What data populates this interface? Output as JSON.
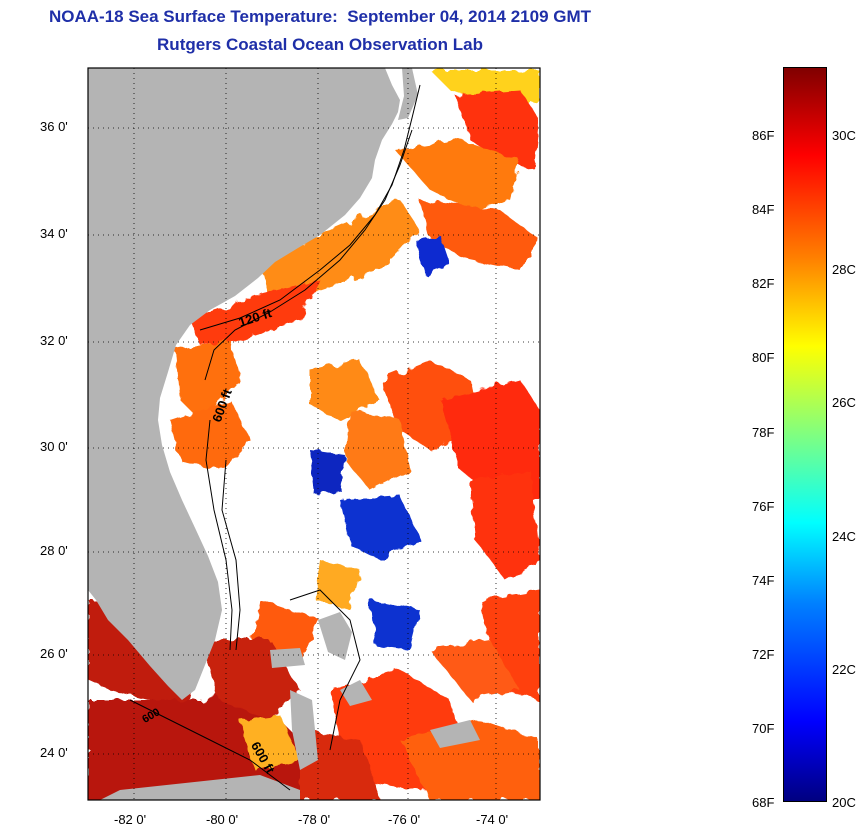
{
  "header": {
    "title": "NOAA-18 Sea Surface Temperature:  September 04, 2014 2109 GMT",
    "subtitle": "Rutgers Coastal Ocean Observation Lab"
  },
  "map": {
    "lat_labels": [
      "36 0'",
      "34 0'",
      "32 0'",
      "30 0'",
      "28 0'",
      "26 0'",
      "24 0'"
    ],
    "lon_labels": [
      "-82 0'",
      "-80 0'",
      "-78 0'",
      "-76 0'",
      "-74 0'"
    ],
    "contour_labels": [
      "120 ft",
      "600 ft",
      "600 ft",
      "600"
    ],
    "colors": {
      "land": "#b4b4b4",
      "cloud": "#ffffff"
    }
  },
  "colorbar": {
    "fahrenheit_labels": [
      "86F",
      "84F",
      "82F",
      "80F",
      "78F",
      "76F",
      "74F",
      "72F",
      "70F",
      "68F"
    ],
    "celsius_labels": [
      "30C",
      "28C",
      "26C",
      "24C",
      "22C",
      "20C"
    ],
    "range_c": [
      20,
      31.2
    ],
    "colors": [
      "#00007f",
      "#0000ff",
      "#0080ff",
      "#00ffff",
      "#80ff80",
      "#ffff00",
      "#ff8000",
      "#ff0000",
      "#7f0000"
    ]
  }
}
